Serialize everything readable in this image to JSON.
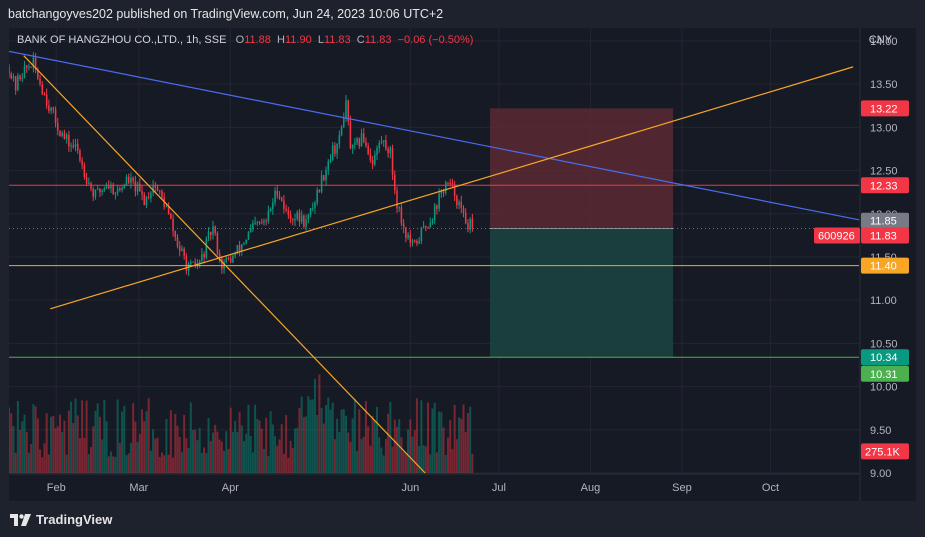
{
  "header": {
    "publisher_line": "batchangoyves202 published on TradingView.com, Jun 24, 2023 10:06 UTC+2"
  },
  "footer": {
    "brand": "TradingView",
    "logo_icon": "tradingview-logo-icon"
  },
  "legend": {
    "symbol": "BANK OF HANGZHOU CO.,LTD., 1h, SSE",
    "o_label": "O",
    "o_value": "11.88",
    "h_label": "H",
    "h_value": "11.90",
    "l_label": "L",
    "l_value": "11.83",
    "c_label": "C",
    "c_value": "11.83",
    "change": "−0.06 (−0.50%)"
  },
  "currency": "CNY",
  "colors": {
    "up": "#089981",
    "down": "#f23645",
    "trend_blue": "#4a6cf0",
    "trend_orange": "#f7a625",
    "support_orange": "#f7a625",
    "resistance_red": "#f23645",
    "target_green": "#4caf50",
    "stop_zone": "#5b2a33",
    "target_zone": "#1b4340"
  },
  "chart_data": {
    "type": "candlestick",
    "symbol": "BANK OF HANGZHOU CO.,LTD.",
    "interval": "1h",
    "exchange": "SSE",
    "currency": "CNY",
    "y_ticks": [
      14.0,
      13.5,
      13.0,
      12.5,
      12.0,
      11.5,
      11.0,
      10.5,
      10.0,
      9.5,
      9.0
    ],
    "ylim": [
      9.0,
      14.15
    ],
    "x_ticks": [
      "Feb",
      "Mar",
      "Apr",
      "Jun",
      "Jul",
      "Aug",
      "Sep",
      "Oct"
    ],
    "x_tick_dates": [
      "2023-02-01",
      "2023-03-01",
      "2023-04-01",
      "2023-06-01",
      "2023-07-01",
      "2023-08-01",
      "2023-09-01",
      "2023-10-01"
    ],
    "xlim": [
      "2023-01-16",
      "2023-10-31"
    ],
    "price_path": [
      [
        "2023-01-16",
        13.7
      ],
      [
        "2023-01-18",
        13.45
      ],
      [
        "2023-01-20",
        13.62
      ],
      [
        "2023-01-24",
        13.75
      ],
      [
        "2023-01-29",
        13.3
      ],
      [
        "2023-02-01",
        13.05
      ],
      [
        "2023-02-04",
        12.85
      ],
      [
        "2023-02-08",
        12.75
      ],
      [
        "2023-02-11",
        12.45
      ],
      [
        "2023-02-14",
        12.2
      ],
      [
        "2023-02-18",
        12.35
      ],
      [
        "2023-02-22",
        12.25
      ],
      [
        "2023-02-25",
        12.4
      ],
      [
        "2023-02-28",
        12.3
      ],
      [
        "2023-03-03",
        12.15
      ],
      [
        "2023-03-06",
        12.35
      ],
      [
        "2023-03-10",
        12.1
      ],
      [
        "2023-03-14",
        11.65
      ],
      [
        "2023-03-18",
        11.35
      ],
      [
        "2023-03-22",
        11.45
      ],
      [
        "2023-03-26",
        11.85
      ],
      [
        "2023-03-29",
        11.4
      ],
      [
        "2023-04-02",
        11.5
      ],
      [
        "2023-04-05",
        11.65
      ],
      [
        "2023-04-09",
        11.85
      ],
      [
        "2023-04-13",
        11.9
      ],
      [
        "2023-04-17",
        12.3
      ],
      [
        "2023-04-20",
        12.0
      ],
      [
        "2023-04-24",
        11.95
      ],
      [
        "2023-04-27",
        11.9
      ],
      [
        "2023-05-05",
        12.7
      ],
      [
        "2023-05-08",
        12.85
      ],
      [
        "2023-05-10",
        13.3
      ],
      [
        "2023-05-12",
        12.7
      ],
      [
        "2023-05-16",
        12.9
      ],
      [
        "2023-05-19",
        12.6
      ],
      [
        "2023-05-22",
        12.85
      ],
      [
        "2023-05-25",
        12.75
      ],
      [
        "2023-05-27",
        12.2
      ],
      [
        "2023-05-30",
        11.8
      ],
      [
        "2023-06-02",
        11.6
      ],
      [
        "2023-06-05",
        11.8
      ],
      [
        "2023-06-08",
        11.95
      ],
      [
        "2023-06-11",
        12.2
      ],
      [
        "2023-06-13",
        12.35
      ],
      [
        "2023-06-16",
        12.25
      ],
      [
        "2023-06-19",
        11.95
      ],
      [
        "2023-06-22",
        11.83
      ]
    ],
    "last_price": 11.83,
    "horizontal_levels": [
      {
        "price": 12.33,
        "label": "12.33",
        "color": "#f23645"
      },
      {
        "price": 11.4,
        "label": "11.40",
        "color": "#f7a625"
      },
      {
        "price": 10.34,
        "label": "10.34",
        "color": "#4caf50"
      }
    ],
    "price_labels": [
      {
        "price": 13.22,
        "label": "13.22",
        "color": "#f23645"
      },
      {
        "price": 12.33,
        "label": "12.33",
        "color": "#f23645"
      },
      {
        "price": 11.85,
        "label": "11.85",
        "color": "#787b86"
      },
      {
        "price": 11.83,
        "label": "11.83",
        "color": "#f23645",
        "prefix": "600926"
      },
      {
        "price": 11.4,
        "label": "11.40",
        "color": "#f7a625"
      },
      {
        "price": 10.34,
        "label": "10.34",
        "color": "#089981"
      },
      {
        "price": 10.31,
        "label": "10.31",
        "color": "#4caf50"
      }
    ],
    "trendlines": [
      {
        "start": [
          "2023-01-16",
          13.88
        ],
        "end": [
          "2023-10-31",
          11.93
        ],
        "color": "#4a6cf0"
      },
      {
        "start": [
          "2023-01-21",
          13.83
        ],
        "end": [
          "2023-06-06",
          9.0
        ],
        "color": "#f7a625"
      },
      {
        "start": [
          "2023-01-30",
          10.9
        ],
        "end": [
          "2023-10-29",
          13.7
        ],
        "color": "#f7a625"
      }
    ],
    "position": {
      "start": "2023-06-28",
      "end": "2023-08-29",
      "entry": 11.83,
      "stop": 13.22,
      "target": 10.34
    },
    "volume": {
      "last_label": "275.1K",
      "last_color": "#f23645"
    }
  }
}
